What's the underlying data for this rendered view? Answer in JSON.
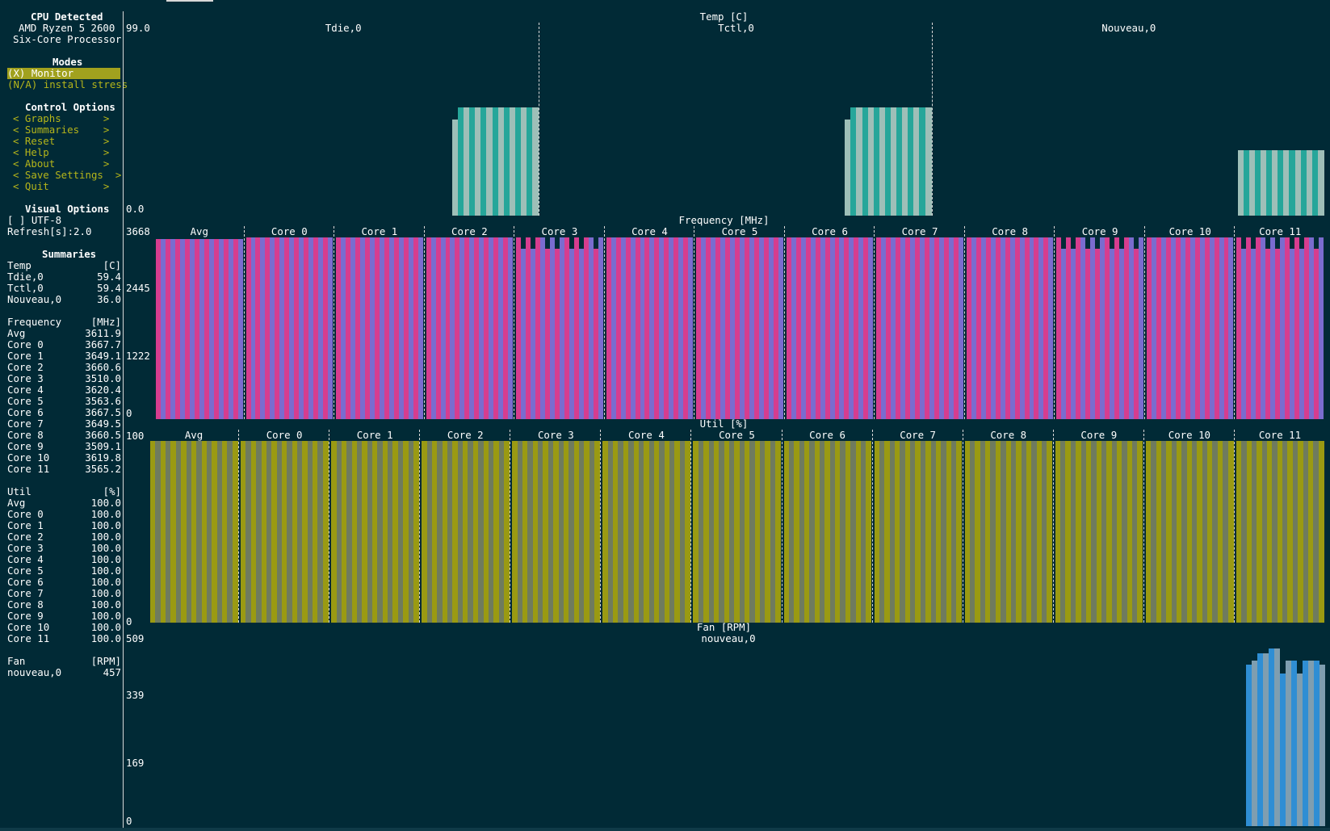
{
  "sidebar": {
    "cpu_title": "CPU Detected",
    "cpu_line1": "AMD Ryzen 5 2600",
    "cpu_line2": "Six-Core Processor",
    "modes_title": "Modes",
    "mode_monitor": "(X) Monitor",
    "mode_stress": "(N/A) install stress",
    "control_title": "Control Options",
    "controls": [
      "< Graphs       >",
      "< Summaries    >",
      "< Reset        >",
      "< Help         >",
      "< About        >",
      "< Save Settings  >",
      "< Quit         >"
    ],
    "visual_title": "Visual Options",
    "utf8": "[ ] UTF-8",
    "refresh": "Refresh[s]:2.0",
    "summaries_title": "Summaries",
    "temp": {
      "header": "Temp",
      "unit": "[C]",
      "rows": [
        {
          "label": "Tdie,0",
          "value": "59.4"
        },
        {
          "label": "Tctl,0",
          "value": "59.4"
        },
        {
          "label": "Nouveau,0",
          "value": "36.0"
        }
      ]
    },
    "freq": {
      "header": "Frequency",
      "unit": "[MHz]",
      "rows": [
        {
          "label": "Avg",
          "value": "3611.9"
        },
        {
          "label": "Core 0",
          "value": "3667.7"
        },
        {
          "label": "Core 1",
          "value": "3649.1"
        },
        {
          "label": "Core 2",
          "value": "3660.6"
        },
        {
          "label": "Core 3",
          "value": "3510.0"
        },
        {
          "label": "Core 4",
          "value": "3620.4"
        },
        {
          "label": "Core 5",
          "value": "3563.6"
        },
        {
          "label": "Core 6",
          "value": "3667.5"
        },
        {
          "label": "Core 7",
          "value": "3649.5"
        },
        {
          "label": "Core 8",
          "value": "3660.5"
        },
        {
          "label": "Core 9",
          "value": "3509.1"
        },
        {
          "label": "Core 10",
          "value": "3619.8"
        },
        {
          "label": "Core 11",
          "value": "3565.2"
        }
      ]
    },
    "util": {
      "header": "Util",
      "unit": "[%]",
      "rows": [
        {
          "label": "Avg",
          "value": "100.0"
        },
        {
          "label": "Core 0",
          "value": "100.0"
        },
        {
          "label": "Core 1",
          "value": "100.0"
        },
        {
          "label": "Core 2",
          "value": "100.0"
        },
        {
          "label": "Core 3",
          "value": "100.0"
        },
        {
          "label": "Core 4",
          "value": "100.0"
        },
        {
          "label": "Core 5",
          "value": "100.0"
        },
        {
          "label": "Core 6",
          "value": "100.0"
        },
        {
          "label": "Core 7",
          "value": "100.0"
        },
        {
          "label": "Core 8",
          "value": "100.0"
        },
        {
          "label": "Core 9",
          "value": "100.0"
        },
        {
          "label": "Core 10",
          "value": "100.0"
        },
        {
          "label": "Core 11",
          "value": "100.0"
        }
      ]
    },
    "fan": {
      "header": "Fan",
      "unit": "[RPM]",
      "rows": [
        {
          "label": "nouveau,0",
          "value": "457"
        }
      ]
    }
  },
  "graphs": {
    "temp": {
      "title": "Temp [C]",
      "ticks": [
        "99.0",
        "0.0"
      ],
      "series": [
        "Tdie,0",
        "Tctl,0",
        "Nouveau,0"
      ],
      "color_a": "#26a69a",
      "color_b": "#9ebfb8"
    },
    "freq": {
      "title": "Frequency [MHz]",
      "ticks": [
        "3668",
        "2445",
        "1222",
        "0"
      ],
      "series": [
        "Avg",
        "Core 0",
        "Core 1",
        "Core 2",
        "Core 3",
        "Core 4",
        "Core 5",
        "Core 6",
        "Core 7",
        "Core 8",
        "Core 9",
        "Core 10",
        "Core 11"
      ],
      "color_a": "#d63d8f",
      "color_b": "#7a6ccf"
    },
    "util": {
      "title": "Util [%]",
      "ticks": [
        "100",
        "0"
      ],
      "series": [
        "Avg",
        "Core 0",
        "Core 1",
        "Core 2",
        "Core 3",
        "Core 4",
        "Core 5",
        "Core 6",
        "Core 7",
        "Core 8",
        "Core 9",
        "Core 10",
        "Core 11"
      ],
      "color_a": "#9a9a12",
      "color_b": "#6f7b5e"
    },
    "fan": {
      "title": "Fan [RPM]",
      "ticks": [
        "509",
        "339",
        "169",
        "0"
      ],
      "series": [
        "nouveau,0"
      ],
      "color_a": "#2f8ed4",
      "color_b": "#7f9eb0"
    }
  }
}
